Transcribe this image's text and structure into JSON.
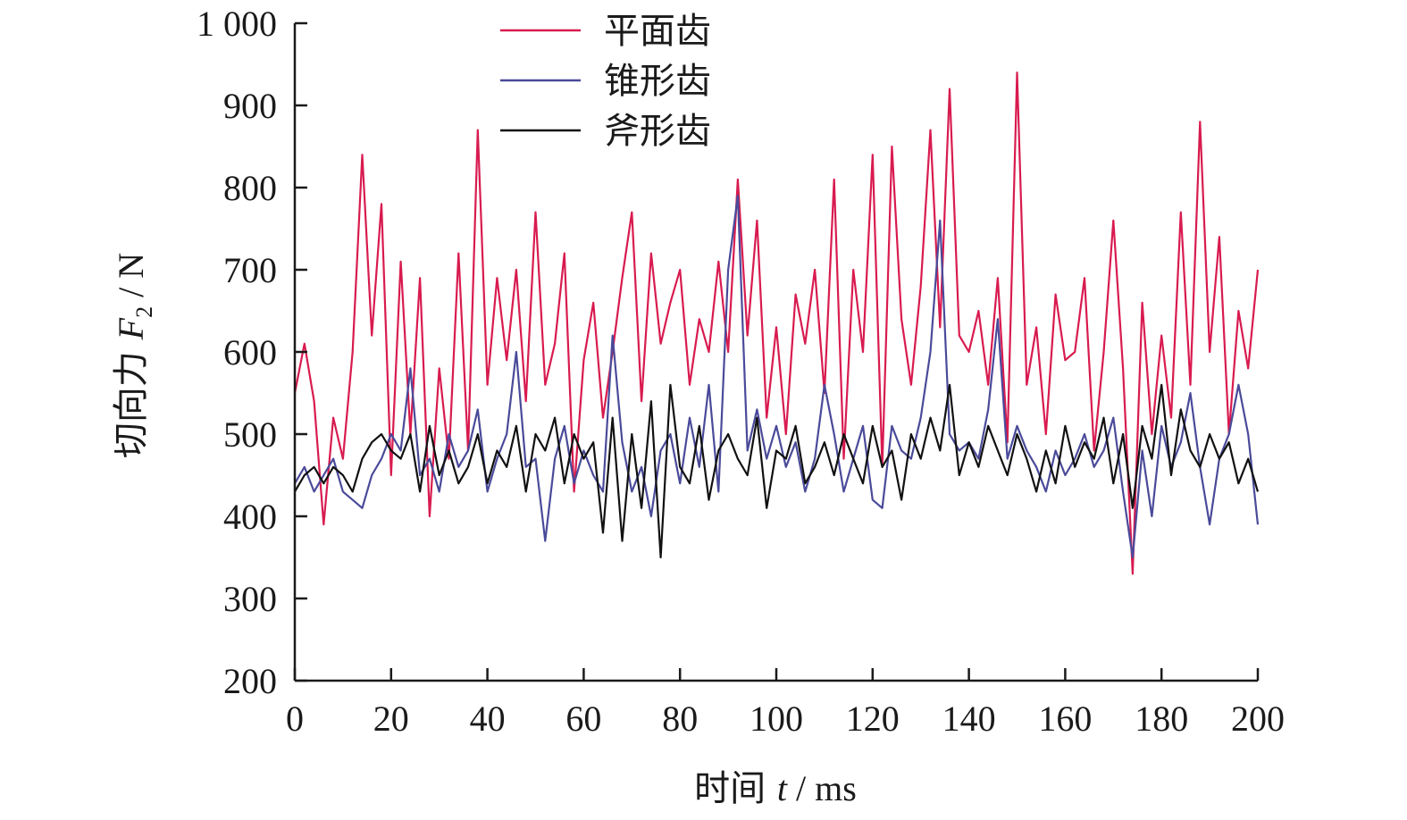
{
  "chart_data": {
    "type": "line",
    "title": "",
    "xlabel": "时间 t / ms",
    "ylabel": "切向力 F2 / N",
    "xlabel_parts": {
      "pre": "时间 ",
      "var": "t",
      "post": " / ms"
    },
    "ylabel_parts": {
      "pre": "切向力 ",
      "var": "F",
      "sub": "2",
      "post": " / N"
    },
    "xlim": [
      0,
      200
    ],
    "ylim": [
      200,
      1000
    ],
    "xticks": [
      0,
      20,
      40,
      60,
      80,
      100,
      120,
      140,
      160,
      180,
      200
    ],
    "xtick_labels": [
      "0",
      "20",
      "40",
      "60",
      "80",
      "100",
      "120",
      "140",
      "160",
      "180",
      "200"
    ],
    "yticks": [
      200,
      300,
      400,
      500,
      600,
      700,
      800,
      900,
      1000
    ],
    "ytick_labels": [
      "200",
      "300",
      "400",
      "500",
      "600",
      "700",
      "800",
      "900",
      "1 000"
    ],
    "grid": false,
    "legend_position": "top-center",
    "x": [
      0,
      2,
      4,
      6,
      8,
      10,
      12,
      14,
      16,
      18,
      20,
      22,
      24,
      26,
      28,
      30,
      32,
      34,
      36,
      38,
      40,
      42,
      44,
      46,
      48,
      50,
      52,
      54,
      56,
      58,
      60,
      62,
      64,
      66,
      68,
      70,
      72,
      74,
      76,
      78,
      80,
      82,
      84,
      86,
      88,
      90,
      92,
      94,
      96,
      98,
      100,
      102,
      104,
      106,
      108,
      110,
      112,
      114,
      116,
      118,
      120,
      122,
      124,
      126,
      128,
      130,
      132,
      134,
      136,
      138,
      140,
      142,
      144,
      146,
      148,
      150,
      152,
      154,
      156,
      158,
      160,
      162,
      164,
      166,
      168,
      170,
      172,
      174,
      176,
      178,
      180,
      182,
      184,
      186,
      188,
      190,
      192,
      194,
      196,
      198,
      200
    ],
    "series": [
      {
        "name": "平面齿",
        "color": "#d81b4f",
        "values": [
          550,
          610,
          540,
          390,
          520,
          470,
          600,
          840,
          620,
          780,
          450,
          710,
          500,
          690,
          400,
          580,
          470,
          720,
          480,
          870,
          560,
          690,
          590,
          700,
          540,
          770,
          560,
          610,
          720,
          430,
          590,
          660,
          520,
          600,
          690,
          770,
          540,
          720,
          610,
          660,
          700,
          560,
          640,
          600,
          710,
          600,
          810,
          620,
          760,
          520,
          630,
          500,
          670,
          610,
          700,
          550,
          810,
          470,
          700,
          600,
          840,
          460,
          850,
          640,
          560,
          680,
          870,
          630,
          920,
          620,
          600,
          650,
          560,
          690,
          490,
          940,
          560,
          630,
          500,
          670,
          590,
          600,
          690,
          480,
          600,
          760,
          580,
          330,
          660,
          500,
          620,
          520,
          770,
          560,
          880,
          600,
          740,
          500,
          650,
          580,
          700
        ]
      },
      {
        "name": "锥形齿",
        "color": "#4a4a9a",
        "values": [
          440,
          460,
          430,
          450,
          470,
          430,
          420,
          410,
          450,
          470,
          500,
          480,
          580,
          450,
          470,
          430,
          500,
          460,
          480,
          530,
          430,
          470,
          500,
          600,
          460,
          470,
          370,
          470,
          510,
          440,
          480,
          450,
          430,
          620,
          490,
          430,
          460,
          400,
          480,
          500,
          440,
          520,
          460,
          560,
          430,
          700,
          790,
          480,
          530,
          470,
          510,
          460,
          490,
          430,
          470,
          560,
          500,
          430,
          470,
          510,
          420,
          410,
          510,
          480,
          470,
          520,
          600,
          760,
          500,
          480,
          490,
          470,
          530,
          640,
          470,
          510,
          480,
          460,
          430,
          480,
          450,
          470,
          500,
          460,
          480,
          520,
          430,
          350,
          480,
          400,
          510,
          460,
          490,
          550,
          460,
          390,
          470,
          500,
          560,
          500,
          390
        ]
      },
      {
        "name": "斧形齿",
        "color": "#111111",
        "values": [
          430,
          450,
          460,
          440,
          460,
          450,
          430,
          470,
          490,
          500,
          480,
          470,
          500,
          430,
          510,
          450,
          480,
          440,
          460,
          500,
          440,
          480,
          460,
          510,
          430,
          500,
          480,
          520,
          440,
          500,
          470,
          490,
          380,
          520,
          370,
          500,
          410,
          540,
          350,
          560,
          460,
          440,
          510,
          420,
          480,
          500,
          470,
          450,
          520,
          410,
          480,
          470,
          510,
          440,
          460,
          490,
          450,
          500,
          470,
          440,
          510,
          460,
          480,
          420,
          500,
          470,
          520,
          480,
          560,
          450,
          490,
          460,
          510,
          480,
          450,
          500,
          470,
          430,
          480,
          440,
          510,
          460,
          490,
          470,
          520,
          440,
          500,
          410,
          510,
          470,
          560,
          450,
          530,
          480,
          460,
          500,
          470,
          490,
          440,
          470,
          430
        ]
      }
    ]
  }
}
